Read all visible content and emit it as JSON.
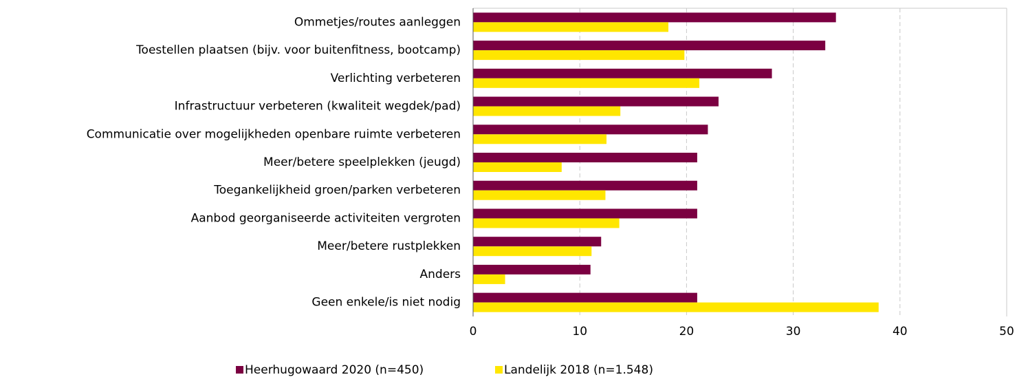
{
  "chart_data": {
    "type": "hbar",
    "categories": [
      "Ommetjes/routes aanleggen",
      "Toestellen plaatsen (bijv. voor buitenfitness, bootcamp)",
      "Verlichting verbeteren",
      "Infrastructuur verbeteren (kwaliteit wegdek/pad)",
      "Communicatie over mogelijkheden openbare ruimte verbeteren",
      "Meer/betere speelplekken (jeugd)",
      "Toegankelijkheid groen/parken verbeteren",
      "Aanbod georganiseerde activiteiten vergroten",
      "Meer/betere rustplekken",
      "Anders",
      "Geen enkele/is niet nodig"
    ],
    "series": [
      {
        "name": "Heerhugowaard 2020 (n=450)",
        "color": "#7b0041",
        "values": [
          34,
          33,
          28,
          23,
          22,
          21,
          21,
          21,
          12,
          11,
          21
        ]
      },
      {
        "name": "Landelijk 2018 (n=1.548)",
        "color": "#ffe600",
        "values": [
          18.3,
          19.8,
          21.2,
          13.8,
          12.5,
          8.3,
          12.4,
          13.7,
          11.1,
          3,
          38
        ]
      }
    ],
    "xlim": [
      0,
      50
    ],
    "xticks": [
      0,
      10,
      20,
      30,
      40,
      50
    ],
    "grid": true,
    "legend": "bottom"
  }
}
